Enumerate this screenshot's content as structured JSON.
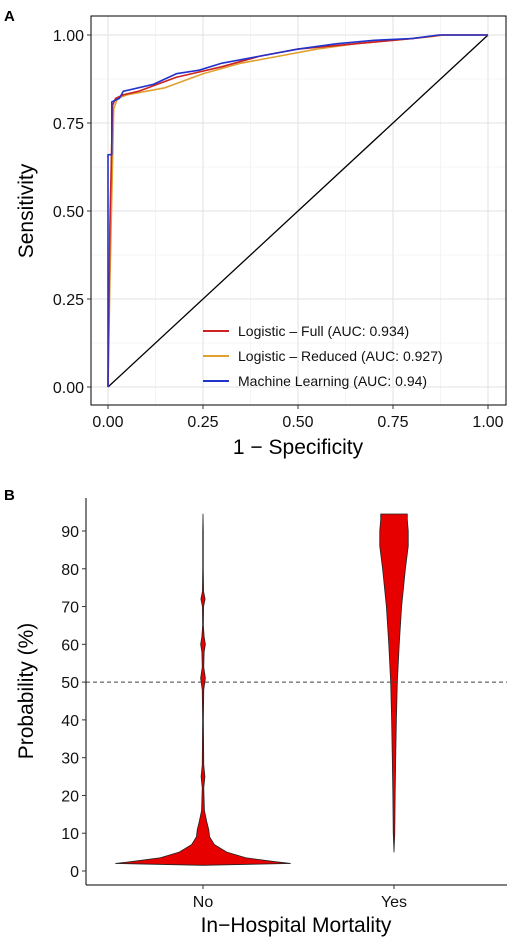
{
  "chart_data": [
    {
      "panel_label": "A",
      "type": "line",
      "xlabel": "1 − Specificity",
      "ylabel": "Sensitivity",
      "xlim": [
        0,
        1
      ],
      "ylim": [
        0,
        1
      ],
      "x_ticks": [
        "0.00",
        "0.25",
        "0.50",
        "0.75",
        "1.00"
      ],
      "y_ticks": [
        "0.00",
        "0.25",
        "0.50",
        "0.75",
        "1.00"
      ],
      "grid": true,
      "legend_position": "bottom-right",
      "series": [
        {
          "name": "Logistic – Full (AUC: 0.934)",
          "color": "#cc2222",
          "points": [
            [
              0,
              0
            ],
            [
              0.005,
              0.46
            ],
            [
              0.012,
              0.8
            ],
            [
              0.02,
              0.82
            ],
            [
              0.04,
              0.83
            ],
            [
              0.08,
              0.84
            ],
            [
              0.13,
              0.86
            ],
            [
              0.18,
              0.88
            ],
            [
              0.22,
              0.89
            ],
            [
              0.3,
              0.91
            ],
            [
              0.4,
              0.94
            ],
            [
              0.5,
              0.96
            ],
            [
              0.6,
              0.97
            ],
            [
              0.7,
              0.98
            ],
            [
              0.8,
              0.99
            ],
            [
              0.88,
              1.0
            ],
            [
              1.0,
              1.0
            ]
          ]
        },
        {
          "name": "Logistic – Reduced (AUC: 0.927)",
          "color": "#e0a030",
          "points": [
            [
              0,
              0
            ],
            [
              0.005,
              0.3
            ],
            [
              0.015,
              0.79
            ],
            [
              0.025,
              0.82
            ],
            [
              0.05,
              0.83
            ],
            [
              0.1,
              0.84
            ],
            [
              0.15,
              0.85
            ],
            [
              0.25,
              0.89
            ],
            [
              0.35,
              0.92
            ],
            [
              0.45,
              0.94
            ],
            [
              0.55,
              0.96
            ],
            [
              0.65,
              0.975
            ],
            [
              0.75,
              0.985
            ],
            [
              0.85,
              0.995
            ],
            [
              0.88,
              1.0
            ],
            [
              1.0,
              1.0
            ]
          ]
        },
        {
          "name": "Machine Learning (AUC: 0.94)",
          "color": "#2233cc",
          "points": [
            [
              0,
              0
            ],
            [
              0,
              0.66
            ],
            [
              0.01,
              0.66
            ],
            [
              0.01,
              0.81
            ],
            [
              0.03,
              0.82
            ],
            [
              0.04,
              0.84
            ],
            [
              0.08,
              0.85
            ],
            [
              0.12,
              0.86
            ],
            [
              0.18,
              0.89
            ],
            [
              0.24,
              0.9
            ],
            [
              0.3,
              0.92
            ],
            [
              0.4,
              0.94
            ],
            [
              0.5,
              0.96
            ],
            [
              0.6,
              0.975
            ],
            [
              0.7,
              0.985
            ],
            [
              0.8,
              0.99
            ],
            [
              0.87,
              1.0
            ],
            [
              1.0,
              1.0
            ]
          ]
        },
        {
          "name": "",
          "color": "#000000",
          "points": [
            [
              0,
              0
            ],
            [
              1,
              1
            ]
          ]
        }
      ]
    },
    {
      "panel_label": "B",
      "type": "violin",
      "xlabel": "In−Hospital Mortality",
      "ylabel": "Probability (%)",
      "categories": [
        "No",
        "Yes"
      ],
      "ylim": [
        0,
        95
      ],
      "y_ticks": [
        "0",
        "10",
        "20",
        "30",
        "40",
        "50",
        "60",
        "70",
        "80",
        "90"
      ],
      "reference_line_y": 50,
      "fill_color": "#e60000",
      "violins": [
        {
          "category": "No",
          "profile": [
            [
              1.5,
              0
            ],
            [
              2,
              0.92
            ],
            [
              2.5,
              0.75
            ],
            [
              3.5,
              0.45
            ],
            [
              5,
              0.25
            ],
            [
              7,
              0.12
            ],
            [
              9,
              0.07
            ],
            [
              11,
              0.06
            ],
            [
              13,
              0.04
            ],
            [
              16,
              0.015
            ],
            [
              22,
              0.008
            ],
            [
              25,
              0.02
            ],
            [
              28,
              0.008
            ],
            [
              40,
              0.004
            ],
            [
              48,
              0.008
            ],
            [
              51,
              0.025
            ],
            [
              54,
              0.008
            ],
            [
              58,
              0.012
            ],
            [
              60,
              0.025
            ],
            [
              62,
              0.012
            ],
            [
              65,
              0.004
            ],
            [
              70,
              0.006
            ],
            [
              72,
              0.022
            ],
            [
              74,
              0.006
            ],
            [
              80,
              0.003
            ],
            [
              90,
              0.003
            ],
            [
              94.5,
              0
            ]
          ]
        },
        {
          "category": "Yes",
          "profile": [
            [
              5,
              0
            ],
            [
              10,
              0.008
            ],
            [
              20,
              0.012
            ],
            [
              30,
              0.018
            ],
            [
              40,
              0.025
            ],
            [
              50,
              0.035
            ],
            [
              60,
              0.055
            ],
            [
              70,
              0.08
            ],
            [
              80,
              0.12
            ],
            [
              86,
              0.15
            ],
            [
              90,
              0.15
            ],
            [
              93,
              0.14
            ],
            [
              94.5,
              0.14
            ]
          ]
        }
      ]
    }
  ]
}
